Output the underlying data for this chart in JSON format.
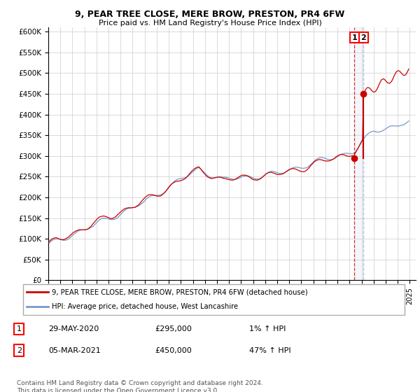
{
  "title1": "9, PEAR TREE CLOSE, MERE BROW, PRESTON, PR4 6FW",
  "title2": "Price paid vs. HM Land Registry's House Price Index (HPI)",
  "ylabel_ticks": [
    "£0",
    "£50K",
    "£100K",
    "£150K",
    "£200K",
    "£250K",
    "£300K",
    "£350K",
    "£400K",
    "£450K",
    "£500K",
    "£550K",
    "£600K"
  ],
  "ytick_values": [
    0,
    50000,
    100000,
    150000,
    200000,
    250000,
    300000,
    350000,
    400000,
    450000,
    500000,
    550000,
    600000
  ],
  "ylim": [
    0,
    610000
  ],
  "xlim_start": 1995.0,
  "xlim_end": 2025.5,
  "hpi_color": "#7799cc",
  "price_color": "#cc0000",
  "sale1_date_x": 2020.41,
  "sale1_price": 295000,
  "sale2_date_x": 2021.17,
  "sale2_price": 450000,
  "legend_line1": "9, PEAR TREE CLOSE, MERE BROW, PRESTON, PR4 6FW (detached house)",
  "legend_line2": "HPI: Average price, detached house, West Lancashire",
  "annotation1_label": "1",
  "annotation1_date": "29-MAY-2020",
  "annotation1_price": "£295,000",
  "annotation1_hpi": "1% ↑ HPI",
  "annotation2_label": "2",
  "annotation2_date": "05-MAR-2021",
  "annotation2_price": "£450,000",
  "annotation2_hpi": "47% ↑ HPI",
  "footer": "Contains HM Land Registry data © Crown copyright and database right 2024.\nThis data is licensed under the Open Government Licence v3.0.",
  "grid_color": "#cccccc",
  "background_color": "#ffffff"
}
